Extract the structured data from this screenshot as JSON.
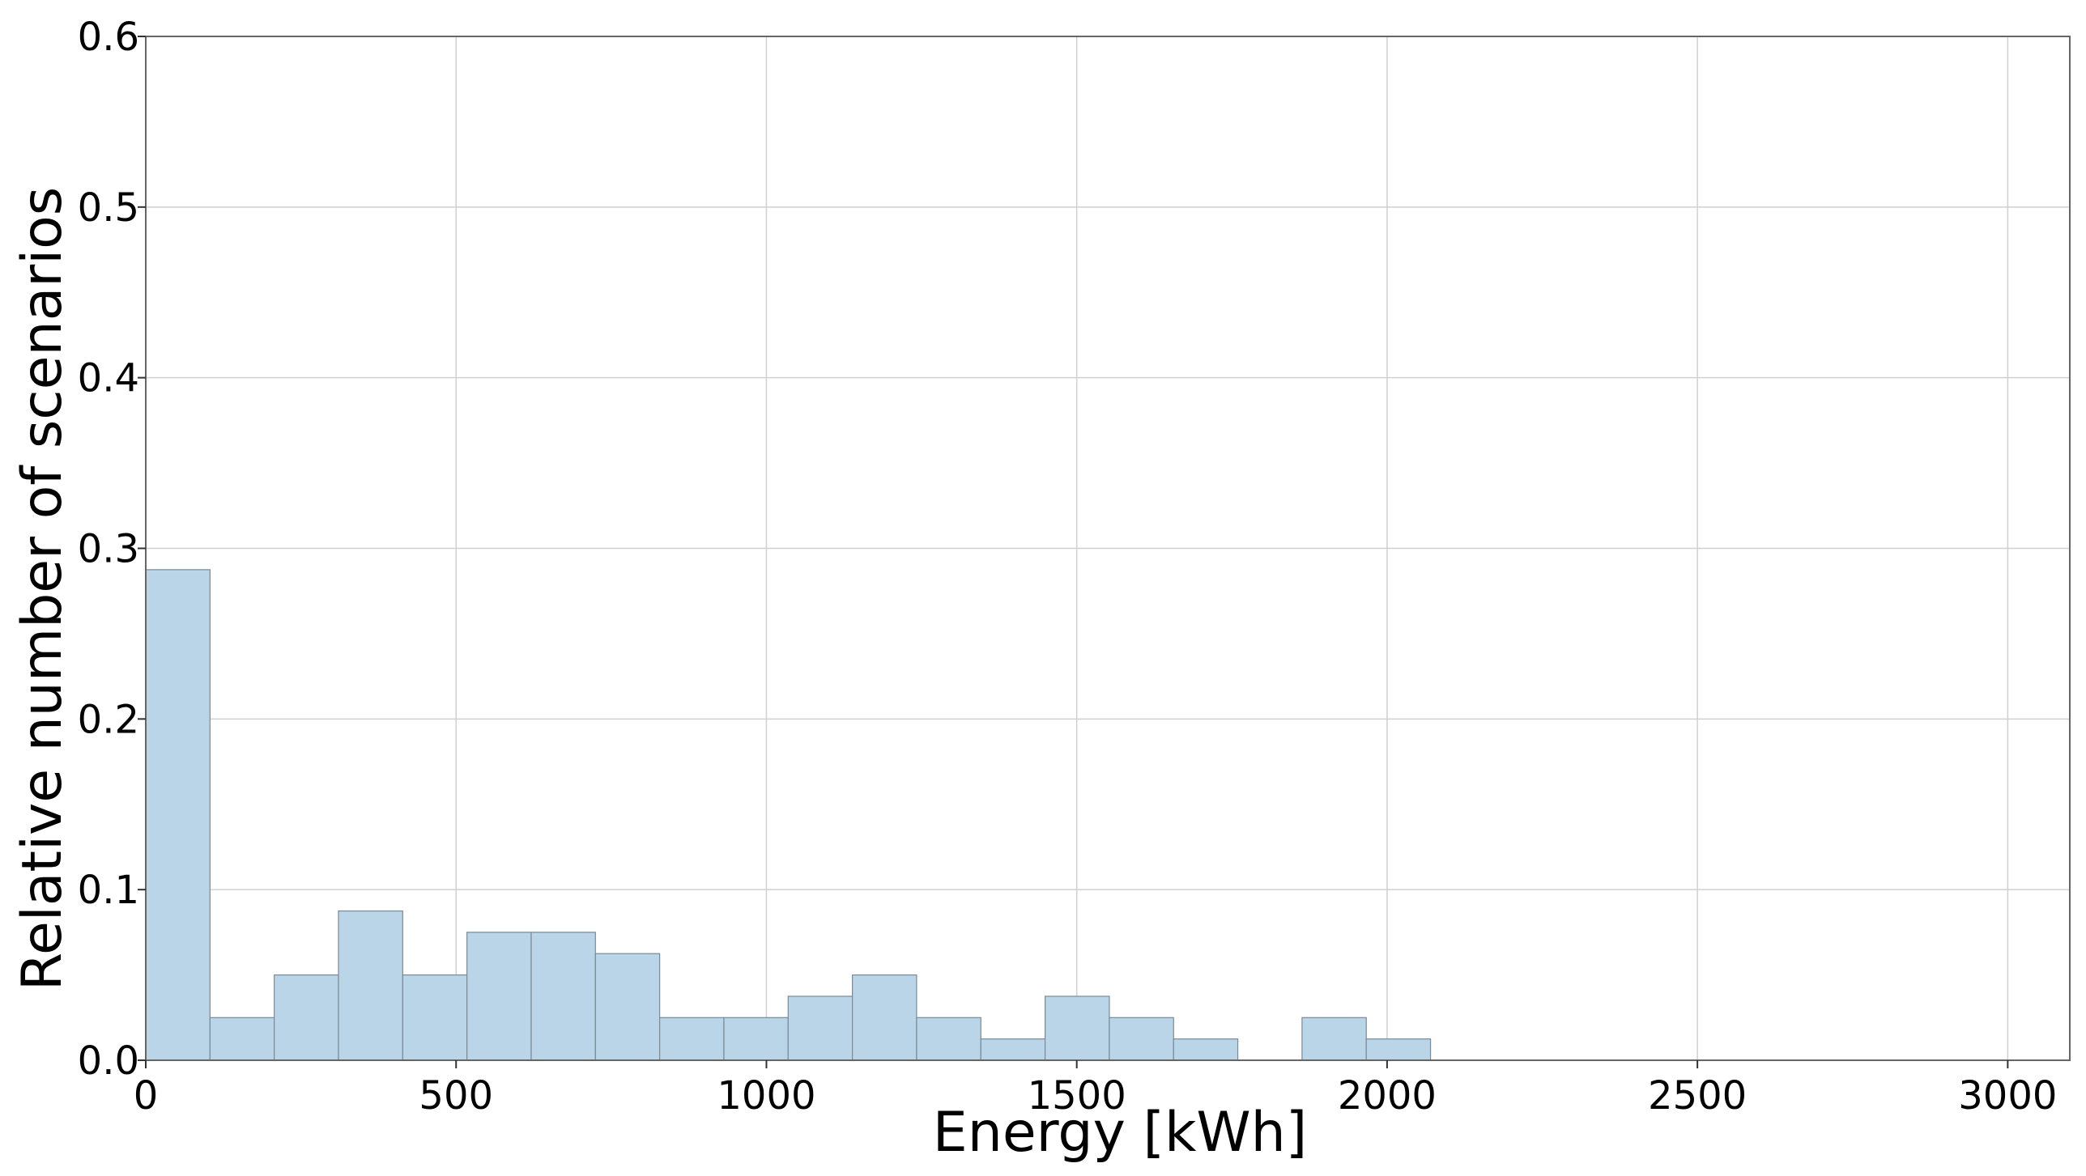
{
  "chart_data": {
    "type": "bar",
    "xlabel": "Energy [kWh]",
    "ylabel": "Relative number of scenarios",
    "xlim": [
      0,
      3100
    ],
    "ylim": [
      0,
      0.6
    ],
    "xticks": [
      0,
      500,
      1000,
      1500,
      2000,
      2500,
      3000
    ],
    "xtick_labels": [
      "0",
      "500",
      "1000",
      "1500",
      "2000",
      "2500",
      "3000"
    ],
    "yticks": [
      0.0,
      0.1,
      0.2,
      0.3,
      0.4,
      0.5,
      0.6
    ],
    "ytick_labels": [
      "0.0",
      "0.1",
      "0.2",
      "0.3",
      "0.4",
      "0.5",
      "0.6"
    ],
    "grid": true,
    "colors": {
      "bar_fill": "#bad5e8",
      "bar_edge": "#7a8a96"
    },
    "bins": [
      {
        "x0": 0,
        "x1": 103.5,
        "value": 0.2875
      },
      {
        "x0": 103.5,
        "x1": 207,
        "value": 0.025
      },
      {
        "x0": 207,
        "x1": 310.5,
        "value": 0.05
      },
      {
        "x0": 310.5,
        "x1": 414,
        "value": 0.0875
      },
      {
        "x0": 414,
        "x1": 517.5,
        "value": 0.05
      },
      {
        "x0": 517.5,
        "x1": 621,
        "value": 0.075
      },
      {
        "x0": 621,
        "x1": 724.5,
        "value": 0.075
      },
      {
        "x0": 724.5,
        "x1": 828,
        "value": 0.0625
      },
      {
        "x0": 828,
        "x1": 931.5,
        "value": 0.025
      },
      {
        "x0": 931.5,
        "x1": 1035,
        "value": 0.025
      },
      {
        "x0": 1035,
        "x1": 1138.5,
        "value": 0.0375
      },
      {
        "x0": 1138.5,
        "x1": 1242,
        "value": 0.05
      },
      {
        "x0": 1242,
        "x1": 1345.5,
        "value": 0.025
      },
      {
        "x0": 1345.5,
        "x1": 1449,
        "value": 0.0125
      },
      {
        "x0": 1449,
        "x1": 1552.5,
        "value": 0.0375
      },
      {
        "x0": 1552.5,
        "x1": 1656,
        "value": 0.025
      },
      {
        "x0": 1656,
        "x1": 1759.5,
        "value": 0.0125
      },
      {
        "x0": 1759.5,
        "x1": 1863,
        "value": 0
      },
      {
        "x0": 1863,
        "x1": 1966.5,
        "value": 0.025
      },
      {
        "x0": 1966.5,
        "x1": 2070,
        "value": 0.0125
      }
    ]
  }
}
